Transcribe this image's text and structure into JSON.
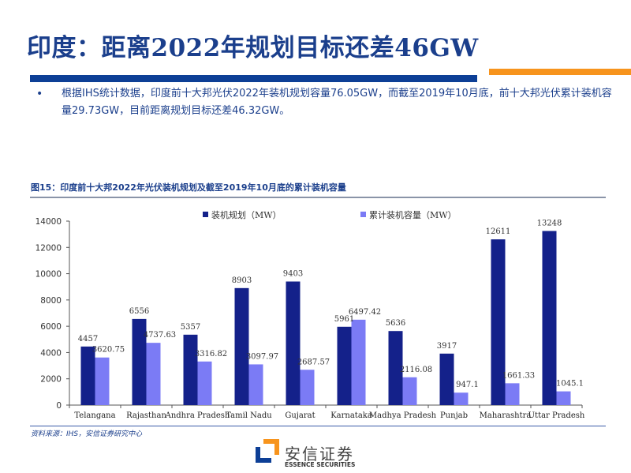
{
  "slide": {
    "title": "印度：距离2022年规划目标还差46GW",
    "bullet_symbol": "•",
    "body": "根据IHS统计数据，印度前十大邦光伏2022年装机规划容量76.05GW，而截至2019年10月底，前十大邦光伏累计装机容量29.73GW，目前距离规划目标还差46.32GW。",
    "figure_title": "图15：印度前十大邦2022年光伏装机规划及截至2019年10月底的累计装机容量",
    "source": "资料来源：IHS，安信证券研究中心",
    "colors": {
      "title": "#1b3f8c",
      "rule_blue": "#0d3f96",
      "rule_orange": "#f7941d"
    }
  },
  "logo": {
    "name_cn": "安信证券",
    "name_en": "ESSENCE SECURITIES",
    "colors": {
      "orange": "#f7941d",
      "blue": "#0d3f96"
    }
  },
  "chart_data": {
    "type": "bar",
    "title": "图15：印度前十大邦2022年光伏装机规划及截至2019年10月底的累计装机容量",
    "xlabel": "",
    "ylabel": "",
    "ylim": [
      0,
      14000
    ],
    "yticks": [
      0,
      2000,
      4000,
      6000,
      8000,
      10000,
      12000,
      14000
    ],
    "grid": false,
    "legend_position": "top-center",
    "categories": [
      "Telangana",
      "Rajasthan",
      "Andhra Pradesh",
      "Tamil Nadu",
      "Gujarat",
      "Karnataka",
      "Madhya Pradesh",
      "Punjab",
      "Maharashtra",
      "Uttar Pradesh"
    ],
    "series": [
      {
        "name": "装机规划（MW）",
        "color": "#14218a",
        "values": [
          4457,
          6556,
          5357,
          8903,
          9403,
          5961,
          5636,
          3917,
          12611,
          13248
        ],
        "labels": [
          "4457",
          "6556",
          "5357",
          "8903",
          "9403",
          "5961",
          "5636",
          "3917",
          "12611",
          "13248"
        ]
      },
      {
        "name": "累计装机容量（MW）",
        "color": "#7b7bf5",
        "values": [
          3620.75,
          4737.63,
          3316.82,
          3097.97,
          2687.57,
          6497.42,
          2116.08,
          947.1,
          1661.33,
          1045.1
        ],
        "labels": [
          "3620.75",
          "4737.63",
          "3316.82",
          "3097.97",
          "2687.57",
          "6497.42",
          "2116.08",
          "947.1",
          "1661.33",
          "1045.1"
        ]
      }
    ]
  }
}
